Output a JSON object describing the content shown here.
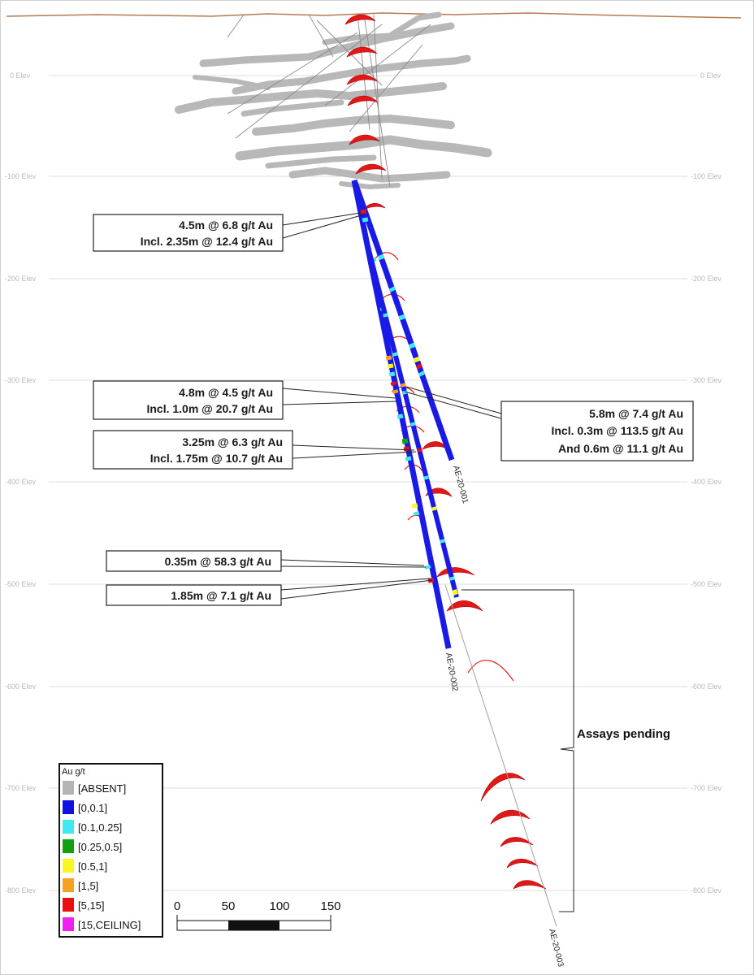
{
  "elevation_labels": [
    {
      "left": "0 Elev",
      "right": "0 Elev"
    },
    {
      "left": "-100 Elev",
      "right": "-100 Elev"
    },
    {
      "left": "-200 Elev",
      "right": "-200 Elev"
    },
    {
      "left": "-300 Elev",
      "right": "-300 Elev"
    },
    {
      "left": "-400 Elev",
      "right": "-400 Elev"
    },
    {
      "left": "-500 Elev",
      "right": "-500 Elev"
    },
    {
      "left": "-600 Elev",
      "right": "-600 Elev"
    },
    {
      "left": "-700 Elev",
      "right": "-700 Elev"
    },
    {
      "left": "-800 Elev",
      "right": "-800 Elev"
    }
  ],
  "callouts": [
    {
      "lines": [
        "4.5m @ 6.8 g/t Au",
        "Incl. 2.35m @ 12.4 g/t Au"
      ]
    },
    {
      "lines": [
        "4.8m @ 4.5 g/t Au",
        "Incl. 1.0m @ 20.7 g/t Au"
      ]
    },
    {
      "lines": [
        "3.25m @ 6.3 g/t Au",
        "Incl. 1.75m @ 10.7 g/t Au"
      ]
    },
    {
      "lines": [
        "0.35m @ 58.3 g/t Au"
      ]
    },
    {
      "lines": [
        "1.85m @ 7.1 g/t Au"
      ]
    },
    {
      "lines": [
        "5.8m @ 7.4 g/t Au",
        "Incl. 0.3m @ 113.5 g/t Au",
        "And 0.6m @ 11.1 g/t Au"
      ]
    }
  ],
  "drillholes": {
    "hole1": "AE-20-001",
    "hole2": "AE-20-002",
    "hole3": "AE-20-003"
  },
  "pending_label": "Assays pending",
  "legend": {
    "title": "Au g/t",
    "items": [
      {
        "label": "[ABSENT]",
        "color": "#b4b4b4"
      },
      {
        "label": "[0,0.1]",
        "color": "#1010e0"
      },
      {
        "label": "[0.1,0.25]",
        "color": "#40e8f0"
      },
      {
        "label": "[0.25,0.5]",
        "color": "#10a010"
      },
      {
        "label": "[0.5,1]",
        "color": "#f8f820"
      },
      {
        "label": "[1,5]",
        "color": "#f8a020"
      },
      {
        "label": "[5,15]",
        "color": "#e81010"
      },
      {
        "label": "[15,CEILING]",
        "color": "#f020f0"
      }
    ]
  },
  "scale_bar": {
    "ticks": [
      "0",
      "50",
      "100",
      "150"
    ]
  },
  "colors": {
    "hole": "#1a1ae6",
    "workings": "#b8b8b8",
    "vein": "#e01010",
    "grid": "#d8d8d8"
  }
}
